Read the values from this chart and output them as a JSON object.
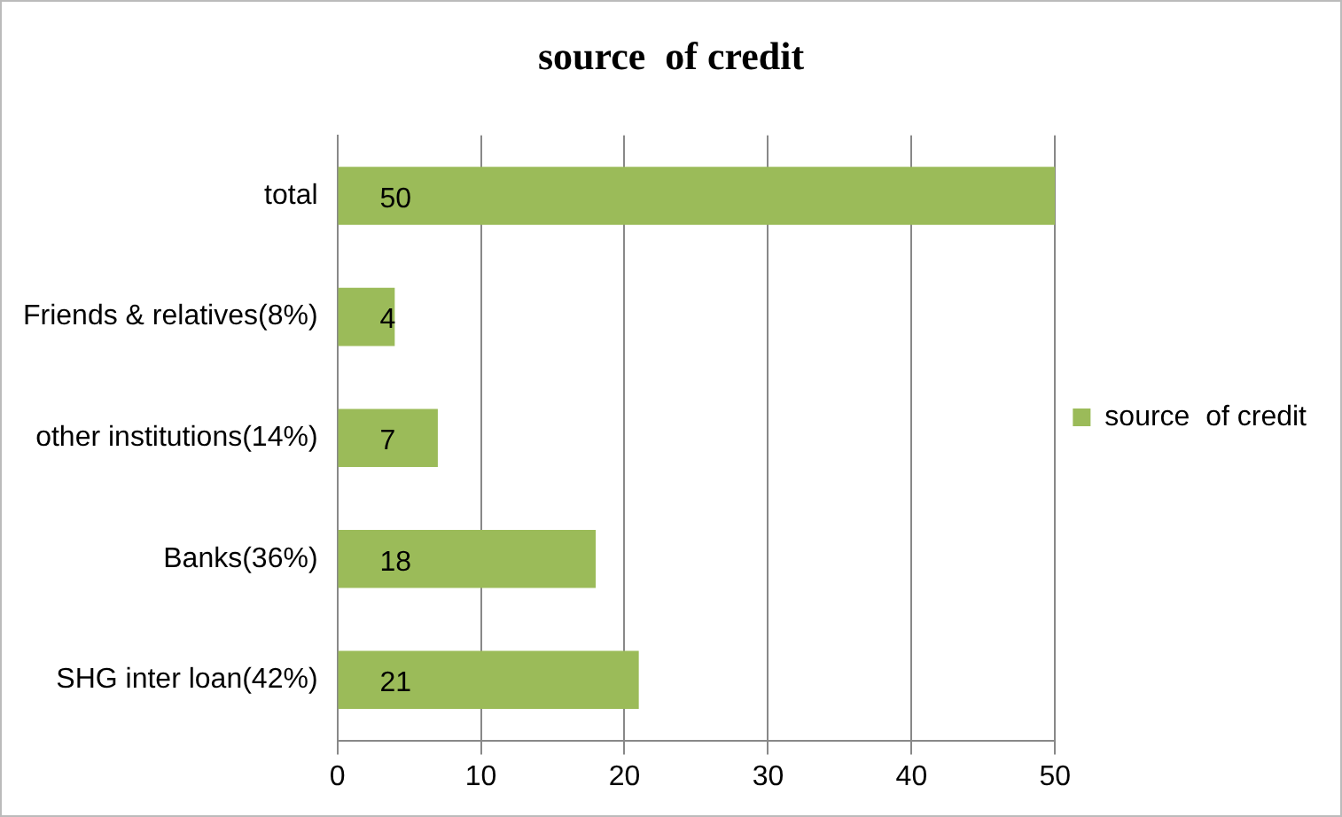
{
  "chart_data": {
    "type": "bar",
    "orientation": "horizontal",
    "title": "source  of credit",
    "categories": [
      "total",
      "Friends & relatives(8%)",
      "other institutions(14%)",
      "Banks(36%)",
      "SHG inter loan(42%)"
    ],
    "series": [
      {
        "name": "source  of credit",
        "color": "#9bbb59",
        "values": [
          50,
          4,
          7,
          18,
          21
        ]
      }
    ],
    "xlim": [
      0,
      50
    ],
    "xticks": [
      0,
      10,
      20,
      30,
      40,
      50
    ],
    "grid": "x",
    "legend": "right",
    "data_labels": true
  }
}
